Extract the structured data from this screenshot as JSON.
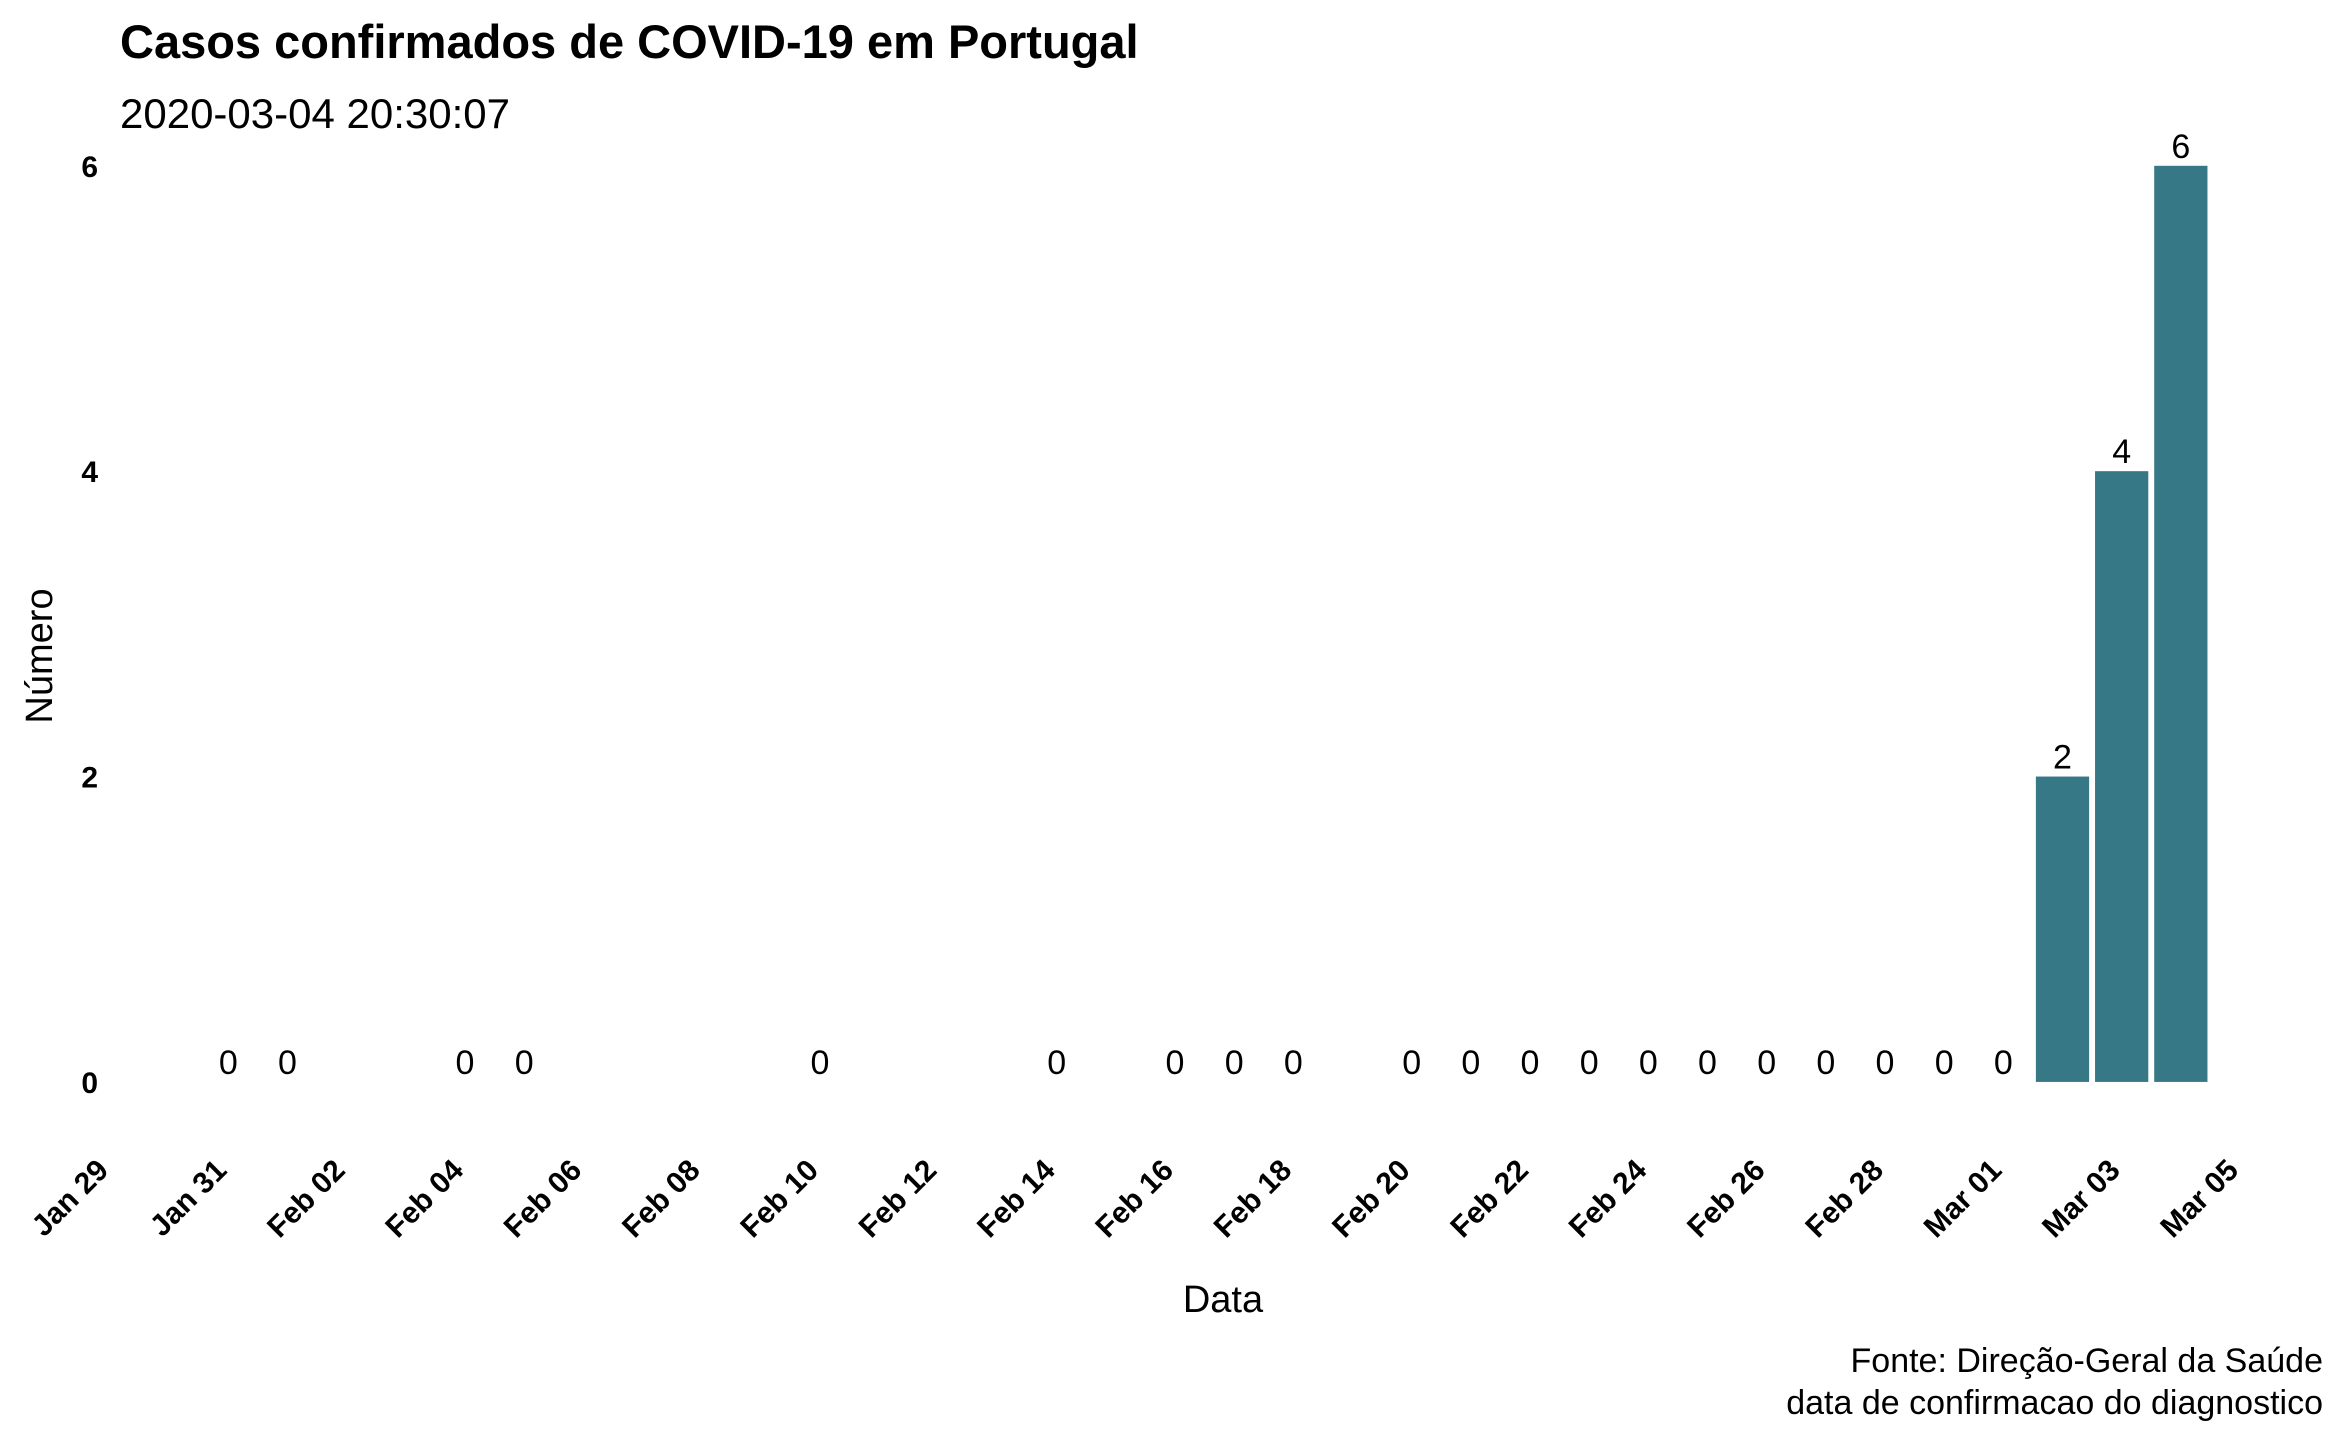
{
  "chart_data": {
    "type": "bar",
    "title": "Casos confirmados de COVID-19 em Portugal",
    "subtitle": "2020-03-04 20:30:07",
    "xlabel": "Data",
    "ylabel": "Número",
    "caption_lines": [
      "Fonte: Direção-Geral da Saúde",
      "data de confirmacao do diagnostico"
    ],
    "ylim": [
      -0.4,
      6.3
    ],
    "yticks": [
      0,
      2,
      4,
      6
    ],
    "xrange": [
      "2020-01-29",
      "2020-03-05"
    ],
    "xticks": [
      {
        "date": "2020-01-29",
        "label": "Jan 29"
      },
      {
        "date": "2020-01-31",
        "label": "Jan 31"
      },
      {
        "date": "2020-02-02",
        "label": "Feb 02"
      },
      {
        "date": "2020-02-04",
        "label": "Feb 04"
      },
      {
        "date": "2020-02-06",
        "label": "Feb 06"
      },
      {
        "date": "2020-02-08",
        "label": "Feb 08"
      },
      {
        "date": "2020-02-10",
        "label": "Feb 10"
      },
      {
        "date": "2020-02-12",
        "label": "Feb 12"
      },
      {
        "date": "2020-02-14",
        "label": "Feb 14"
      },
      {
        "date": "2020-02-16",
        "label": "Feb 16"
      },
      {
        "date": "2020-02-18",
        "label": "Feb 18"
      },
      {
        "date": "2020-02-20",
        "label": "Feb 20"
      },
      {
        "date": "2020-02-22",
        "label": "Feb 22"
      },
      {
        "date": "2020-02-24",
        "label": "Feb 24"
      },
      {
        "date": "2020-02-26",
        "label": "Feb 26"
      },
      {
        "date": "2020-02-28",
        "label": "Feb 28"
      },
      {
        "date": "2020-03-01",
        "label": "Mar 01"
      },
      {
        "date": "2020-03-03",
        "label": "Mar 03"
      },
      {
        "date": "2020-03-05",
        "label": "Mar 05"
      }
    ],
    "bar_color": "#377886",
    "grid": false,
    "legend": "none",
    "data": [
      {
        "date": "2020-01-31",
        "value": 0
      },
      {
        "date": "2020-02-01",
        "value": 0
      },
      {
        "date": "2020-02-04",
        "value": 0
      },
      {
        "date": "2020-02-05",
        "value": 0
      },
      {
        "date": "2020-02-10",
        "value": 0
      },
      {
        "date": "2020-02-14",
        "value": 0
      },
      {
        "date": "2020-02-16",
        "value": 0
      },
      {
        "date": "2020-02-17",
        "value": 0
      },
      {
        "date": "2020-02-18",
        "value": 0
      },
      {
        "date": "2020-02-20",
        "value": 0
      },
      {
        "date": "2020-02-21",
        "value": 0
      },
      {
        "date": "2020-02-22",
        "value": 0
      },
      {
        "date": "2020-02-23",
        "value": 0
      },
      {
        "date": "2020-02-24",
        "value": 0
      },
      {
        "date": "2020-02-25",
        "value": 0
      },
      {
        "date": "2020-02-26",
        "value": 0
      },
      {
        "date": "2020-02-27",
        "value": 0
      },
      {
        "date": "2020-02-28",
        "value": 0
      },
      {
        "date": "2020-02-29",
        "value": 0
      },
      {
        "date": "2020-03-01",
        "value": 0
      },
      {
        "date": "2020-03-02",
        "value": 2
      },
      {
        "date": "2020-03-03",
        "value": 4
      },
      {
        "date": "2020-03-04",
        "value": 6
      }
    ]
  }
}
